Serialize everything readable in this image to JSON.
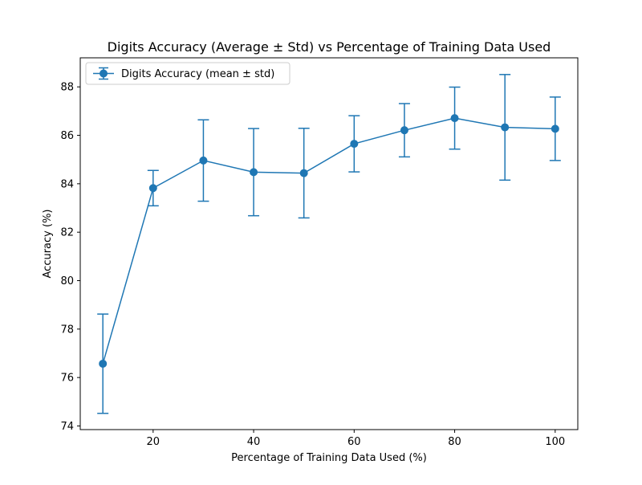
{
  "chart_data": {
    "type": "line",
    "title": "Digits Accuracy (Average ± Std) vs Percentage of Training Data Used",
    "xlabel": "Percentage of Training Data Used (%)",
    "ylabel": "Accuracy (%)",
    "xlim": [
      5.5,
      104.5
    ],
    "ylim": [
      73.85,
      89.2
    ],
    "xticks": [
      20,
      40,
      60,
      80,
      100
    ],
    "yticks": [
      74,
      76,
      78,
      80,
      82,
      84,
      86,
      88
    ],
    "grid": false,
    "legend_position": "top-left",
    "series": [
      {
        "name": "Digits Accuracy (mean ± std)",
        "color": "#1f77b4",
        "x": [
          10,
          20,
          30,
          40,
          50,
          60,
          70,
          80,
          90,
          100
        ],
        "y": [
          76.57,
          83.82,
          84.96,
          84.48,
          84.44,
          85.65,
          86.21,
          86.71,
          86.33,
          86.27
        ],
        "yerr": [
          2.05,
          0.73,
          1.68,
          1.8,
          1.85,
          1.16,
          1.1,
          1.28,
          2.18,
          1.31
        ]
      }
    ]
  }
}
